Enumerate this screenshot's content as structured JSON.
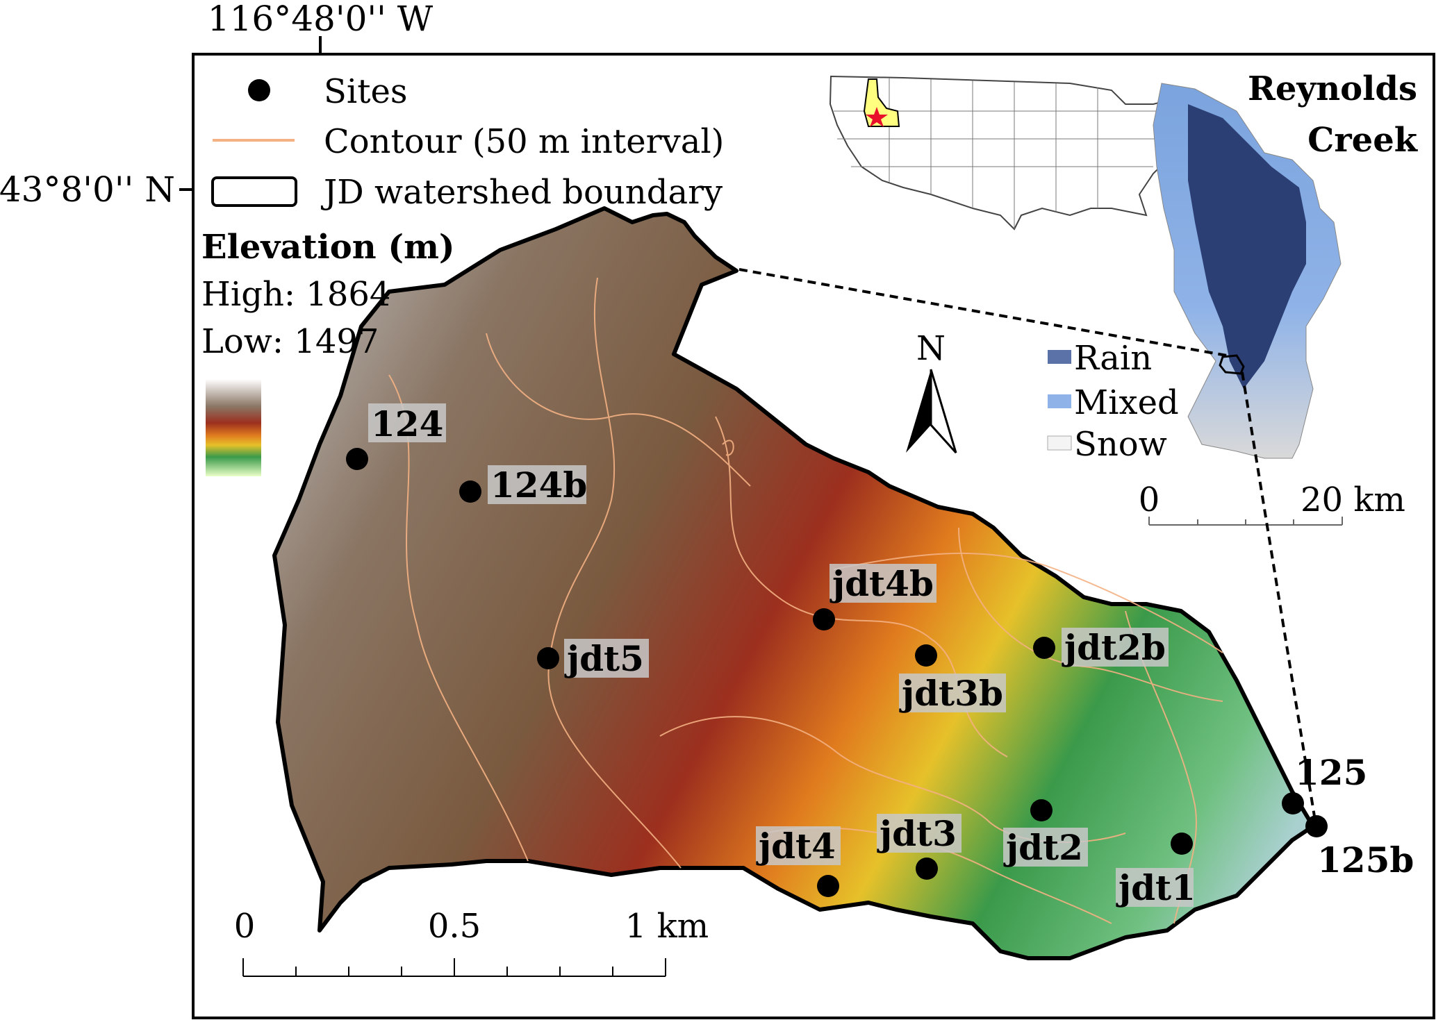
{
  "coordinates": {
    "longitude_label": "116°48'0'' W",
    "latitude_label": "43°8'0'' N"
  },
  "legend": {
    "sites_label": "Sites",
    "contour_label": "Contour (50  m interval)",
    "boundary_label": "JD watershed boundary",
    "elevation_title": "Elevation (m)",
    "high_label": "High: 1864",
    "low_label": "Low: 1497",
    "contour_color": "#f4b183"
  },
  "inset": {
    "title_line1": "Reynolds",
    "title_line2": "Creek",
    "rain_label": "Rain",
    "mixed_label": "Mixed",
    "snow_label": "Snow",
    "scale_start": "0",
    "scale_end": "20 km",
    "rain_color": "#2b3f74",
    "mixed_color": "#8fb3e8",
    "snow_color": "#d9d9d9"
  },
  "north_arrow": {
    "label": "N"
  },
  "scale_bar": {
    "tick0": "0",
    "tick1": "0.5",
    "tick2": "1 km"
  },
  "sites": [
    {
      "id": "124",
      "label": "124"
    },
    {
      "id": "124b",
      "label": "124b"
    },
    {
      "id": "jdt4b",
      "label": "jdt4b"
    },
    {
      "id": "jdt5",
      "label": "jdt5"
    },
    {
      "id": "jdt3b",
      "label": "jdt3b"
    },
    {
      "id": "jdt2b",
      "label": "jdt2b"
    },
    {
      "id": "125",
      "label": "125"
    },
    {
      "id": "125b",
      "label": "125b"
    },
    {
      "id": "jdt4",
      "label": "jdt4"
    },
    {
      "id": "jdt3",
      "label": "jdt3"
    },
    {
      "id": "jdt2",
      "label": "jdt2"
    },
    {
      "id": "jdt1",
      "label": "jdt1"
    }
  ]
}
